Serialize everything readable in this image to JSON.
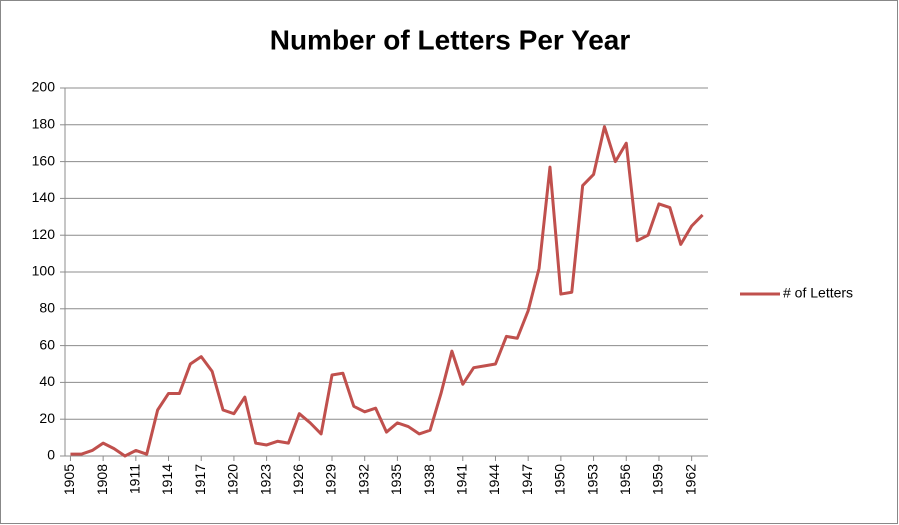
{
  "chart_data": {
    "type": "line",
    "title": "Number of Letters Per Year",
    "x": [
      1905,
      1906,
      1907,
      1908,
      1909,
      1910,
      1911,
      1912,
      1913,
      1914,
      1915,
      1916,
      1917,
      1918,
      1919,
      1920,
      1921,
      1922,
      1923,
      1924,
      1925,
      1926,
      1927,
      1928,
      1929,
      1930,
      1931,
      1932,
      1933,
      1934,
      1935,
      1936,
      1937,
      1938,
      1939,
      1940,
      1941,
      1942,
      1943,
      1944,
      1945,
      1946,
      1947,
      1948,
      1949,
      1950,
      1951,
      1952,
      1953,
      1954,
      1955,
      1956,
      1957,
      1958,
      1959,
      1960,
      1961,
      1962,
      1963
    ],
    "series": [
      {
        "name": "# of Letters",
        "color": "#c0504d",
        "values": [
          1,
          1,
          3,
          7,
          4,
          0,
          3,
          1,
          25,
          34,
          34,
          50,
          54,
          46,
          25,
          23,
          32,
          7,
          6,
          8,
          7,
          23,
          18,
          12,
          44,
          45,
          27,
          24,
          26,
          13,
          18,
          16,
          12,
          14,
          34,
          57,
          39,
          48,
          49,
          50,
          65,
          64,
          79,
          102,
          157,
          88,
          89,
          147,
          153,
          179,
          160,
          170,
          117,
          120,
          137,
          135,
          115,
          125,
          131
        ]
      }
    ],
    "xlim": [
      1904.5,
      1963.5
    ],
    "xticks": [
      1905,
      1908,
      1911,
      1914,
      1917,
      1920,
      1923,
      1926,
      1929,
      1932,
      1935,
      1938,
      1941,
      1944,
      1947,
      1950,
      1953,
      1956,
      1959,
      1962
    ],
    "ylim": [
      0,
      200
    ],
    "yticks": [
      0,
      20,
      40,
      60,
      80,
      100,
      120,
      140,
      160,
      180,
      200
    ],
    "grid": true,
    "legend": "right"
  }
}
